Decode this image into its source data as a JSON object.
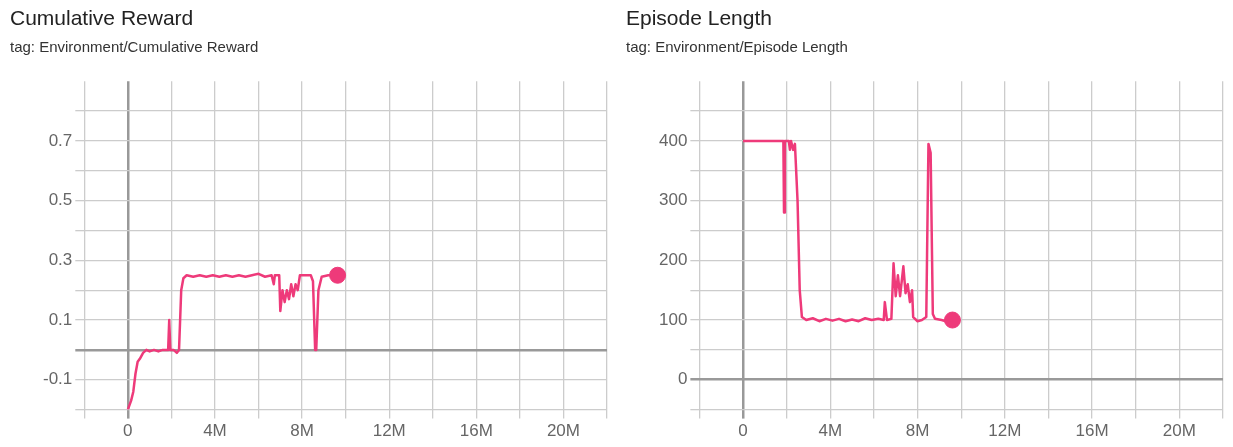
{
  "chart_data": [
    {
      "type": "line",
      "title": "Cumulative Reward",
      "subtitle": "tag: Environment/Cumulative Reward",
      "grid": true,
      "legend": false,
      "xlim": [
        -2000000,
        22000000
      ],
      "xticks": [
        {
          "value": -2000000,
          "label": null
        },
        {
          "value": 0,
          "label": "0"
        },
        {
          "value": 2000000,
          "label": null
        },
        {
          "value": 4000000,
          "label": "4M"
        },
        {
          "value": 6000000,
          "label": null
        },
        {
          "value": 8000000,
          "label": "8M"
        },
        {
          "value": 10000000,
          "label": null
        },
        {
          "value": 12000000,
          "label": "12M"
        },
        {
          "value": 14000000,
          "label": null
        },
        {
          "value": 16000000,
          "label": "16M"
        },
        {
          "value": 18000000,
          "label": null
        },
        {
          "value": 20000000,
          "label": "20M"
        },
        {
          "value": 22000000,
          "label": null
        }
      ],
      "ylim": [
        -0.2,
        0.9
      ],
      "yticks": [
        {
          "value": -0.2,
          "label": null
        },
        -0.1,
        {
          "value": 0,
          "label": null
        },
        0.1,
        {
          "value": 0.2,
          "label": null
        },
        0.3,
        {
          "value": 0.4,
          "label": null
        },
        0.5,
        {
          "value": 0.6,
          "label": null
        },
        0.7,
        {
          "value": 0.8,
          "label": null
        }
      ],
      "series": [
        {
          "color": "#ee3a7a",
          "x": [
            0,
            150000,
            250000,
            350000,
            450000,
            550000,
            700000,
            850000,
            1000000,
            1200000,
            1400000,
            1600000,
            1850000,
            1900000,
            1950000,
            2100000,
            2250000,
            2350000,
            2450000,
            2550000,
            2700000,
            3000000,
            3300000,
            3600000,
            3900000,
            4200000,
            4500000,
            4800000,
            5100000,
            5400000,
            5700000,
            6000000,
            6300000,
            6600000,
            6700000,
            6750000,
            6950000,
            7000000,
            7100000,
            7200000,
            7300000,
            7400000,
            7500000,
            7600000,
            7700000,
            7800000,
            7900000,
            8200000,
            8400000,
            8500000,
            8600000,
            8650000,
            8750000,
            8900000,
            9200000,
            9630000
          ],
          "values": [
            -0.2,
            -0.17,
            -0.14,
            -0.08,
            -0.04,
            -0.03,
            -0.01,
            0.0,
            -0.005,
            0.0,
            -0.005,
            0.0,
            0.0,
            0.1,
            0.0,
            0.0,
            -0.01,
            0.0,
            0.2,
            0.24,
            0.25,
            0.245,
            0.25,
            0.245,
            0.25,
            0.245,
            0.25,
            0.245,
            0.25,
            0.245,
            0.25,
            0.255,
            0.245,
            0.25,
            0.22,
            0.25,
            0.25,
            0.13,
            0.2,
            0.16,
            0.2,
            0.17,
            0.22,
            0.18,
            0.22,
            0.2,
            0.25,
            0.25,
            0.25,
            0.23,
            0.0,
            0.0,
            0.2,
            0.245,
            0.25,
            0.25
          ]
        },
        {
          "type": "scatter",
          "color": "#ee3a7a",
          "marker": "circle",
          "x": [
            9630000
          ],
          "values": [
            0.25
          ]
        }
      ]
    },
    {
      "type": "line",
      "title": "Episode Length",
      "subtitle": "tag: Environment/Episode Length",
      "grid": true,
      "legend": false,
      "xlim": [
        -2000000,
        22000000
      ],
      "xticks": [
        {
          "value": -2000000,
          "label": null
        },
        {
          "value": 0,
          "label": "0"
        },
        {
          "value": 2000000,
          "label": null
        },
        {
          "value": 4000000,
          "label": "4M"
        },
        {
          "value": 6000000,
          "label": null
        },
        {
          "value": 8000000,
          "label": "8M"
        },
        {
          "value": 10000000,
          "label": null
        },
        {
          "value": 12000000,
          "label": "12M"
        },
        {
          "value": 14000000,
          "label": null
        },
        {
          "value": 16000000,
          "label": "16M"
        },
        {
          "value": 18000000,
          "label": null
        },
        {
          "value": 20000000,
          "label": "20M"
        },
        {
          "value": 22000000,
          "label": null
        }
      ],
      "ylim": [
        -50,
        500
      ],
      "yticks": [
        {
          "value": -50,
          "label": null
        },
        0,
        {
          "value": 50,
          "label": null
        },
        100,
        {
          "value": 150,
          "label": null
        },
        200,
        {
          "value": 250,
          "label": null
        },
        300,
        {
          "value": 350,
          "label": null
        },
        400,
        {
          "value": 450,
          "label": null
        }
      ],
      "series": [
        {
          "color": "#ee3a7a",
          "x": [
            0,
            1850000,
            1880000,
            1920000,
            2100000,
            2150000,
            2200000,
            2300000,
            2380000,
            2500000,
            2600000,
            2700000,
            2900000,
            3200000,
            3500000,
            3800000,
            4100000,
            4400000,
            4700000,
            5000000,
            5300000,
            5600000,
            5900000,
            6200000,
            6450000,
            6500000,
            6600000,
            6800000,
            6900000,
            7000000,
            7100000,
            7200000,
            7350000,
            7450000,
            7550000,
            7650000,
            7750000,
            7800000,
            8000000,
            8200000,
            8400000,
            8500000,
            8600000,
            8700000,
            8800000,
            9100000,
            9300000,
            9600000
          ],
          "values": [
            400,
            400,
            280,
            400,
            400,
            385,
            400,
            385,
            395,
            300,
            150,
            105,
            100,
            103,
            98,
            102,
            99,
            102,
            98,
            101,
            98,
            103,
            100,
            102,
            100,
            130,
            100,
            102,
            195,
            140,
            175,
            140,
            190,
            145,
            160,
            130,
            150,
            105,
            98,
            100,
            105,
            395,
            380,
            110,
            102,
            100,
            98,
            100
          ]
        },
        {
          "type": "scatter",
          "color": "#ee3a7a",
          "marker": "circle",
          "x": [
            9600000
          ],
          "values": [
            100
          ]
        }
      ]
    }
  ]
}
